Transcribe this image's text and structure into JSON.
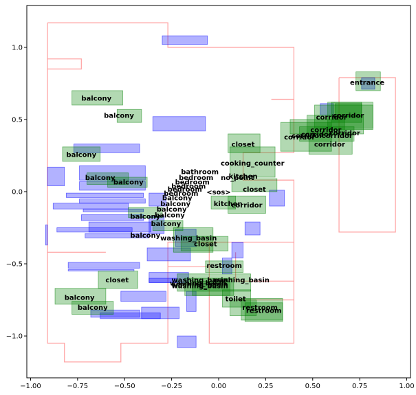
{
  "chart_data": {
    "type": "scatter",
    "title": "",
    "xlabel": "",
    "ylabel": "",
    "xlim": [
      -1.02,
      1.02
    ],
    "ylim": [
      -1.29,
      1.29
    ],
    "grid": false,
    "xticks": [
      -1.0,
      -0.75,
      -0.5,
      -0.25,
      0.0,
      0.25,
      0.5,
      0.75,
      1.0
    ],
    "xtick_labels": [
      "−1.00",
      "−0.75",
      "−0.50",
      "−0.25",
      "0.00",
      "0.25",
      "0.50",
      "0.75",
      "1.00"
    ],
    "yticks": [
      1.0,
      0.5,
      0.0,
      -0.5,
      -1.0
    ],
    "ytick_labels": [
      "1.0",
      "0.5",
      "0.0",
      "−0.5",
      "−1.0"
    ],
    "colors": {
      "outline": "#ff8a8a",
      "blue_box": "#0000ff",
      "green_box": "#008000",
      "axes": "#000000"
    },
    "outlines": [
      [
        [
          -0.91,
          1.17
        ],
        [
          -0.27,
          1.17
        ],
        [
          -0.27,
          1.0
        ],
        [
          0.4,
          1.0
        ],
        [
          0.4,
          0.27
        ],
        [
          0.13,
          0.27
        ],
        [
          0.13,
          0.08
        ],
        [
          0.4,
          0.08
        ],
        [
          0.4,
          -1.05
        ],
        [
          -0.05,
          -1.05
        ],
        [
          -0.05,
          -0.35
        ],
        [
          -0.27,
          -0.35
        ],
        [
          -0.27,
          -1.05
        ],
        [
          -0.52,
          -1.05
        ],
        [
          -0.52,
          -1.18
        ],
        [
          -0.82,
          -1.18
        ],
        [
          -0.82,
          -1.05
        ],
        [
          -0.91,
          -1.05
        ],
        [
          -0.91,
          1.17
        ]
      ],
      [
        [
          -0.91,
          0.85
        ],
        [
          -0.73,
          0.85
        ],
        [
          -0.73,
          0.92
        ],
        [
          -0.91,
          0.92
        ]
      ],
      [
        [
          0.64,
          0.79
        ],
        [
          0.94,
          0.79
        ],
        [
          0.94,
          -0.28
        ],
        [
          0.64,
          -0.28
        ],
        [
          0.64,
          0.79
        ]
      ],
      [
        [
          0.28,
          0.64
        ],
        [
          0.4,
          0.64
        ]
      ],
      [
        [
          -0.05,
          -0.35
        ],
        [
          0.4,
          -0.35
        ]
      ],
      [
        [
          0.09,
          -0.42
        ],
        [
          0.09,
          -0.62
        ],
        [
          0.4,
          -0.62
        ]
      ],
      [
        [
          0.09,
          -0.75
        ],
        [
          0.4,
          -0.75
        ]
      ],
      [
        [
          -0.27,
          -0.52
        ],
        [
          -0.05,
          -0.52
        ]
      ],
      [
        [
          -0.91,
          -0.42
        ],
        [
          -0.6,
          -0.42
        ]
      ]
    ],
    "blue_boxes": [
      [
        -0.3,
        1.02,
        -0.06,
        1.08
      ],
      [
        -0.35,
        0.42,
        -0.07,
        0.52
      ],
      [
        -0.77,
        0.27,
        -0.42,
        0.33
      ],
      [
        -0.91,
        0.04,
        -0.82,
        0.17
      ],
      [
        -0.74,
        0.08,
        -0.39,
        0.18
      ],
      [
        -0.74,
        0.01,
        -0.39,
        0.07
      ],
      [
        -0.81,
        -0.04,
        -0.4,
        -0.01
      ],
      [
        -0.74,
        -0.08,
        -0.39,
        -0.05
      ],
      [
        -0.88,
        -0.12,
        -0.48,
        -0.08
      ],
      [
        -0.72,
        -0.14,
        -0.4,
        -0.12
      ],
      [
        -0.73,
        -0.2,
        -0.4,
        -0.16
      ],
      [
        -0.69,
        -0.28,
        -0.36,
        -0.21
      ],
      [
        -0.86,
        -0.28,
        -0.46,
        -0.25
      ],
      [
        -0.71,
        -0.32,
        -0.37,
        -0.29
      ],
      [
        -0.37,
        -0.1,
        -0.28,
        -0.01
      ],
      [
        -0.37,
        -0.29,
        -0.29,
        -0.17
      ],
      [
        -0.23,
        -0.38,
        -0.12,
        -0.26
      ],
      [
        -0.38,
        -0.48,
        -0.15,
        -0.39
      ],
      [
        -0.8,
        -0.53,
        -0.42,
        -0.49
      ],
      [
        -0.8,
        -0.55,
        -0.45,
        -0.54
      ],
      [
        -0.37,
        -0.63,
        -0.16,
        -0.56
      ],
      [
        -0.37,
        -0.63,
        -0.22,
        -0.6
      ],
      [
        -0.52,
        -0.76,
        -0.28,
        -0.69
      ],
      [
        -0.41,
        -0.88,
        -0.21,
        -0.8
      ],
      [
        -0.63,
        -0.88,
        -0.31,
        -0.84
      ],
      [
        -0.68,
        -0.87,
        -0.42,
        -0.82
      ],
      [
        -0.17,
        -0.83,
        -0.12,
        -0.69
      ],
      [
        -0.22,
        -1.08,
        -0.12,
        -1.0
      ],
      [
        -0.92,
        -0.37,
        -0.91,
        -0.23
      ],
      [
        0.07,
        -0.46,
        0.13,
        -0.35
      ],
      [
        0.14,
        -0.3,
        0.22,
        -0.21
      ],
      [
        0.27,
        -0.1,
        0.35,
        0.01
      ],
      [
        0.02,
        -0.57,
        0.07,
        -0.46
      ],
      [
        0.76,
        0.71,
        0.83,
        0.79
      ],
      [
        0.54,
        0.53,
        0.61,
        0.61
      ]
    ],
    "green_boxes": [
      [
        -0.78,
        0.6,
        -0.51,
        0.7
      ],
      [
        -0.54,
        0.48,
        -0.41,
        0.57
      ],
      [
        -0.83,
        0.21,
        -0.63,
        0.31
      ],
      [
        -0.7,
        0.05,
        -0.48,
        0.13
      ],
      [
        -0.59,
        0.03,
        -0.38,
        0.1
      ],
      [
        -0.48,
        -0.18,
        -0.3,
        -0.11
      ],
      [
        -0.35,
        -0.27,
        -0.19,
        -0.2
      ],
      [
        -0.24,
        -0.42,
        -0.03,
        -0.25
      ],
      [
        -0.2,
        -0.41,
        0.05,
        -0.31
      ],
      [
        -0.64,
        -0.67,
        -0.43,
        -0.55
      ],
      [
        -0.87,
        -0.78,
        -0.6,
        -0.67
      ],
      [
        -0.78,
        -0.85,
        -0.56,
        -0.76
      ],
      [
        0.05,
        0.27,
        0.22,
        0.4
      ],
      [
        0.06,
        0.1,
        0.3,
        0.31
      ],
      [
        0.07,
        0.0,
        0.31,
        0.09
      ],
      [
        -0.04,
        -0.12,
        0.09,
        -0.03
      ],
      [
        0.05,
        -0.15,
        0.25,
        -0.03
      ],
      [
        -0.07,
        -0.56,
        0.13,
        -0.48
      ],
      [
        -0.22,
        -0.69,
        0.17,
        -0.57
      ],
      [
        -0.18,
        -0.72,
        0.08,
        -0.6
      ],
      [
        -0.14,
        -0.72,
        0.06,
        -0.62
      ],
      [
        0.02,
        -0.8,
        0.17,
        -0.68
      ],
      [
        0.06,
        -0.86,
        0.2,
        -0.75
      ],
      [
        0.12,
        -0.89,
        0.34,
        -0.74
      ],
      [
        0.14,
        -0.9,
        0.34,
        -0.77
      ],
      [
        0.73,
        0.7,
        0.86,
        0.83
      ],
      [
        0.51,
        0.44,
        0.82,
        0.6
      ],
      [
        0.58,
        0.43,
        0.82,
        0.62
      ],
      [
        0.47,
        0.4,
        0.77,
        0.53
      ],
      [
        0.38,
        0.4,
        0.67,
        0.5
      ],
      [
        0.33,
        0.28,
        0.6,
        0.48
      ],
      [
        0.43,
        0.35,
        0.72,
        0.45
      ],
      [
        0.48,
        0.26,
        0.71,
        0.4
      ],
      [
        0.6,
        0.48,
        0.76,
        0.62
      ],
      [
        0.62,
        0.52,
        0.76,
        0.61
      ]
    ],
    "labels": [
      {
        "text": "balcony",
        "x": -0.65,
        "y": 0.65
      },
      {
        "text": "balcony",
        "x": -0.53,
        "y": 0.53
      },
      {
        "text": "balcony",
        "x": -0.73,
        "y": 0.26
      },
      {
        "text": "balcony",
        "x": -0.63,
        "y": 0.1
      },
      {
        "text": "balcony",
        "x": -0.48,
        "y": 0.07
      },
      {
        "text": "balcony",
        "x": -0.22,
        "y": -0.04
      },
      {
        "text": "balcony",
        "x": -0.23,
        "y": -0.08
      },
      {
        "text": "balcony",
        "x": -0.25,
        "y": -0.12
      },
      {
        "text": "balcony",
        "x": -0.26,
        "y": -0.16
      },
      {
        "text": "balcony",
        "x": -0.39,
        "y": -0.17
      },
      {
        "text": "balcony",
        "x": -0.28,
        "y": -0.22
      },
      {
        "text": "balcony",
        "x": -0.39,
        "y": -0.3
      },
      {
        "text": "balcony",
        "x": -0.74,
        "y": -0.73
      },
      {
        "text": "balcony",
        "x": -0.67,
        "y": -0.8
      },
      {
        "text": "bathroom",
        "x": -0.1,
        "y": 0.14
      },
      {
        "text": "bedroom",
        "x": -0.12,
        "y": 0.1
      },
      {
        "text": "bedroom",
        "x": -0.14,
        "y": 0.07
      },
      {
        "text": "bedroom",
        "x": -0.16,
        "y": 0.04
      },
      {
        "text": "bedroom",
        "x": -0.18,
        "y": 0.02
      },
      {
        "text": "bedroom",
        "x": -0.2,
        "y": -0.01
      },
      {
        "text": "cooking_counter",
        "x": 0.18,
        "y": 0.2
      },
      {
        "text": "kitchen",
        "x": 0.13,
        "y": 0.11
      },
      {
        "text": "no_point",
        "x": 0.1,
        "y": 0.1
      },
      {
        "text": "<sos>",
        "x": 0.0,
        "y": 0.0
      },
      {
        "text": "closet",
        "x": 0.13,
        "y": 0.33
      },
      {
        "text": "closet",
        "x": 0.19,
        "y": 0.02
      },
      {
        "text": "closet",
        "x": -0.07,
        "y": -0.36
      },
      {
        "text": "closet",
        "x": -0.54,
        "y": -0.61
      },
      {
        "text": "kitchen",
        "x": 0.05,
        "y": -0.08
      },
      {
        "text": "corridor",
        "x": 0.15,
        "y": -0.09
      },
      {
        "text": "washing_basin",
        "x": -0.16,
        "y": -0.32
      },
      {
        "text": "washing_basin",
        "x": 0.12,
        "y": -0.61
      },
      {
        "text": "washing_basin",
        "x": -0.1,
        "y": -0.61
      },
      {
        "text": "washing_basin",
        "x": -0.11,
        "y": -0.63
      },
      {
        "text": "washing_basin",
        "x": -0.1,
        "y": -0.64
      },
      {
        "text": "washing_basin",
        "x": -0.1,
        "y": -0.65
      },
      {
        "text": "restroom",
        "x": 0.03,
        "y": -0.51
      },
      {
        "text": "toilet",
        "x": 0.09,
        "y": -0.74
      },
      {
        "text": "restroom",
        "x": 0.22,
        "y": -0.8
      },
      {
        "text": "restroom",
        "x": 0.24,
        "y": -0.82
      },
      {
        "text": "entrance",
        "x": 0.79,
        "y": 0.76
      },
      {
        "text": "corridor",
        "x": 0.69,
        "y": 0.53
      },
      {
        "text": "corridor",
        "x": 0.6,
        "y": 0.52
      },
      {
        "text": "corridor",
        "x": 0.57,
        "y": 0.43
      },
      {
        "text": "corridor",
        "x": 0.67,
        "y": 0.41
      },
      {
        "text": "corridor",
        "x": 0.52,
        "y": 0.4
      },
      {
        "text": "corridor",
        "x": 0.47,
        "y": 0.39
      },
      {
        "text": "corridor",
        "x": 0.63,
        "y": 0.39
      },
      {
        "text": "corridor",
        "x": 0.43,
        "y": 0.38
      },
      {
        "text": "corridor",
        "x": 0.59,
        "y": 0.33
      }
    ]
  }
}
